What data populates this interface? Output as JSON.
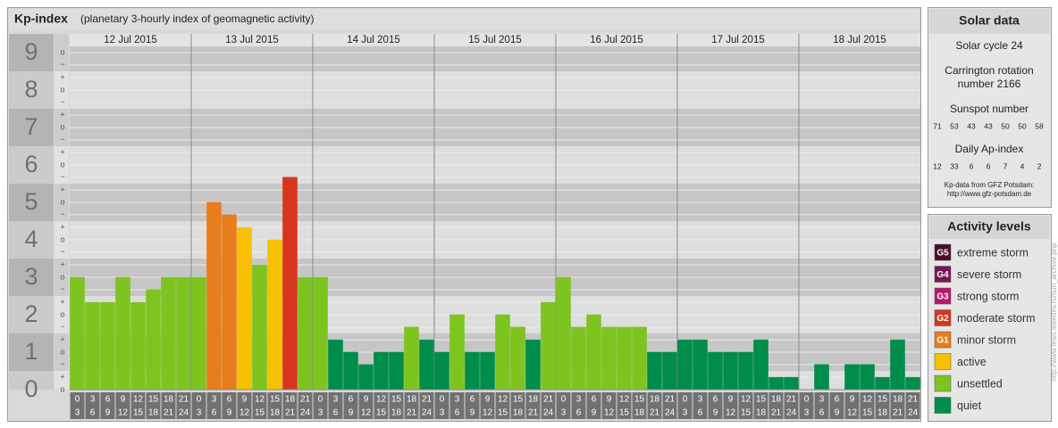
{
  "chart_data": {
    "type": "bar",
    "title": "Kp-index",
    "subtitle": "(planetary 3-hourly index of geomagnetic activity)",
    "categories": [
      "12 Jul 2015",
      "13 Jul 2015",
      "14 Jul 2015",
      "15 Jul 2015",
      "16 Jul 2015",
      "17 Jul 2015",
      "18 Jul 2015"
    ],
    "hours_start": [
      0,
      3,
      6,
      9,
      12,
      15,
      18,
      21
    ],
    "hours_end": [
      3,
      6,
      9,
      12,
      15,
      18,
      21,
      24
    ],
    "values": [
      [
        3,
        2.33,
        2.33,
        3,
        2.33,
        2.67,
        3,
        3
      ],
      [
        3,
        5,
        4.67,
        4.33,
        3.33,
        4,
        5.67,
        3
      ],
      [
        3,
        1.33,
        1,
        0.67,
        1,
        1,
        1.67,
        1.33
      ],
      [
        1,
        2,
        1,
        1,
        2,
        1.67,
        1.33,
        2.33
      ],
      [
        3,
        1.67,
        2,
        1.67,
        1.67,
        1.67,
        1,
        1
      ],
      [
        1.33,
        1.33,
        1,
        1,
        1,
        1.33,
        0.33,
        0.33
      ],
      [
        0,
        0.67,
        0,
        0.67,
        0.67,
        0.33,
        1.33,
        0.33
      ]
    ],
    "colors": [
      [
        "#7dc421",
        "#7dc421",
        "#7dc421",
        "#7dc421",
        "#7dc421",
        "#7dc421",
        "#7dc421",
        "#7dc421"
      ],
      [
        "#7dc421",
        "#e87d1e",
        "#e87d1e",
        "#f7c100",
        "#7dc421",
        "#f7c100",
        "#d8351f",
        "#7dc421"
      ],
      [
        "#7dc421",
        "#008c4a",
        "#008c4a",
        "#008c4a",
        "#008c4a",
        "#008c4a",
        "#7dc421",
        "#008c4a"
      ],
      [
        "#008c4a",
        "#7dc421",
        "#008c4a",
        "#008c4a",
        "#7dc421",
        "#7dc421",
        "#008c4a",
        "#7dc421"
      ],
      [
        "#7dc421",
        "#7dc421",
        "#7dc421",
        "#7dc421",
        "#7dc421",
        "#7dc421",
        "#008c4a",
        "#008c4a"
      ],
      [
        "#008c4a",
        "#008c4a",
        "#008c4a",
        "#008c4a",
        "#008c4a",
        "#008c4a",
        "#008c4a",
        "#008c4a"
      ],
      [
        "#008c4a",
        "#008c4a",
        "#008c4a",
        "#008c4a",
        "#008c4a",
        "#008c4a",
        "#008c4a",
        "#008c4a"
      ]
    ],
    "ylim": [
      0,
      9.5
    ],
    "yticks": [
      0,
      1,
      2,
      3,
      4,
      5,
      6,
      7,
      8,
      9
    ],
    "yminorticks": [
      {
        "value": 0,
        "label": "o"
      },
      {
        "value": 0.33,
        "label": "+"
      },
      {
        "value": 0.67,
        "label": "−"
      },
      {
        "value": 1,
        "label": "o"
      },
      {
        "value": 1.33,
        "label": "+"
      },
      {
        "value": 1.67,
        "label": "−"
      },
      {
        "value": 2,
        "label": "o"
      },
      {
        "value": 2.33,
        "label": "+"
      },
      {
        "value": 2.67,
        "label": "−"
      },
      {
        "value": 3,
        "label": "o"
      },
      {
        "value": 3.33,
        "label": "+"
      },
      {
        "value": 3.67,
        "label": "−"
      },
      {
        "value": 4,
        "label": "o"
      },
      {
        "value": 4.33,
        "label": "+"
      },
      {
        "value": 4.67,
        "label": "−"
      },
      {
        "value": 5,
        "label": "o"
      },
      {
        "value": 5.33,
        "label": "+"
      },
      {
        "value": 5.67,
        "label": "−"
      },
      {
        "value": 6,
        "label": "o"
      },
      {
        "value": 6.33,
        "label": "+"
      },
      {
        "value": 6.67,
        "label": "−"
      },
      {
        "value": 7,
        "label": "o"
      },
      {
        "value": 7.33,
        "label": "+"
      },
      {
        "value": 7.67,
        "label": "−"
      },
      {
        "value": 8,
        "label": "o"
      },
      {
        "value": 8.33,
        "label": "+"
      },
      {
        "value": 8.67,
        "label": "−"
      },
      {
        "value": 9,
        "label": "o"
      }
    ],
    "levels_title": "Activity levels",
    "levels": [
      {
        "badge": "G5",
        "name": "extreme storm",
        "color": "#4a0d2b"
      },
      {
        "badge": "G4",
        "name": "severe storm",
        "color": "#7a1553"
      },
      {
        "badge": "G3",
        "name": "strong storm",
        "color": "#b8186a"
      },
      {
        "badge": "G2",
        "name": "moderate storm",
        "color": "#d8351f"
      },
      {
        "badge": "G1",
        "name": "minor storm",
        "color": "#e87d1e"
      },
      {
        "name": "active",
        "color": "#f7c100"
      },
      {
        "name": "unsettled",
        "color": "#7dc421"
      },
      {
        "name": "quiet",
        "color": "#008c4a"
      }
    ]
  },
  "side_panel": {
    "title": "Solar data",
    "solar_cycle": "Solar cycle 24",
    "carrington": [
      "Carrington rotation",
      "number 2166"
    ],
    "sunspot_title": "Sunspot number",
    "sunspot": [
      71,
      53,
      43,
      43,
      50,
      50,
      58
    ],
    "ap_title": "Daily Ap-index",
    "ap": [
      12,
      33,
      6,
      6,
      7,
      4,
      2
    ],
    "source": [
      "Kp-data from GFZ Potsdam:",
      "http://www.gfz-potsdam.de"
    ]
  },
  "watermark": "http://www.tesis.lebedev.ru/sun_archive.php"
}
